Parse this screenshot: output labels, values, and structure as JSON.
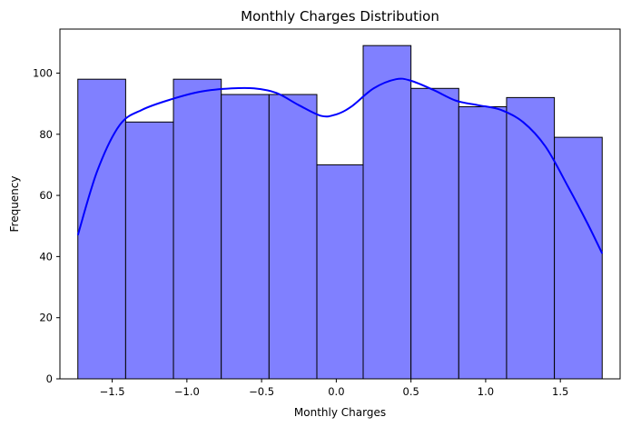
{
  "chart_data": {
    "type": "bar",
    "title": "Monthly Charges Distribution",
    "xlabel": "Monthly Charges",
    "ylabel": "Frequency",
    "xlim": [
      -1.85,
      1.9
    ],
    "ylim": [
      0,
      114.4
    ],
    "xticks": [
      -1.5,
      -1.0,
      -0.5,
      0.0,
      0.5,
      1.0,
      1.5
    ],
    "xtick_labels": [
      "−1.5",
      "−1.0",
      "−0.5",
      "0.0",
      "0.5",
      "1.0",
      "1.5"
    ],
    "yticks": [
      0,
      20,
      40,
      60,
      80,
      100
    ],
    "ytick_labels": [
      "0",
      "20",
      "40",
      "60",
      "80",
      "100"
    ],
    "bins": {
      "edges": [
        -1.73,
        -1.41,
        -1.09,
        -0.77,
        -0.45,
        -0.13,
        0.18,
        0.5,
        0.82,
        1.14,
        1.46,
        1.78
      ],
      "counts": [
        98,
        84,
        98,
        93,
        93,
        70,
        109,
        95,
        89,
        92,
        79
      ]
    },
    "kde": {
      "x": [
        -1.73,
        -1.6,
        -1.45,
        -1.3,
        -1.1,
        -0.9,
        -0.7,
        -0.55,
        -0.4,
        -0.25,
        -0.1,
        0.0,
        0.1,
        0.25,
        0.4,
        0.5,
        0.65,
        0.8,
        0.95,
        1.1,
        1.25,
        1.4,
        1.55,
        1.68,
        1.78
      ],
      "y": [
        47,
        68,
        83,
        88,
        91.5,
        94,
        95,
        95,
        93.5,
        89.5,
        86,
        86.5,
        89,
        95,
        98,
        97.5,
        94.5,
        91,
        89.5,
        88,
        84,
        76,
        63,
        51,
        41
      ]
    },
    "colors": {
      "bar_fill": "#8080ff",
      "bar_edge": "#000000",
      "kde_line": "#0000ff"
    },
    "grid": false,
    "legend": false
  }
}
